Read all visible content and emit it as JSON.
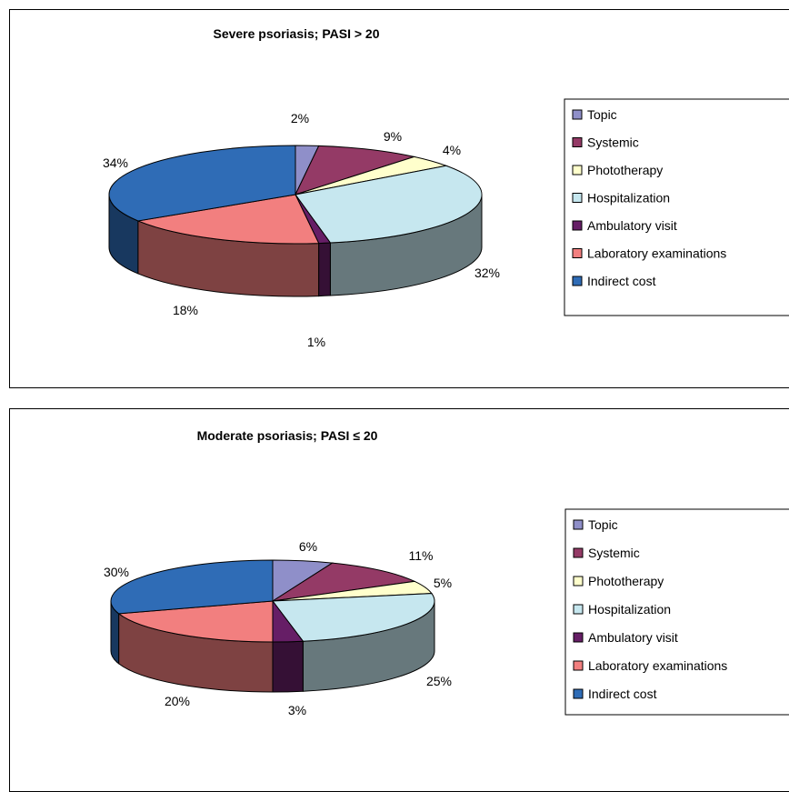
{
  "chart_data": [
    {
      "type": "pie",
      "title": "Severe psoriasis; PASI > 20",
      "categories": [
        "Topic",
        "Systemic",
        "Phototherapy",
        "Hospitalization",
        "Ambulatory visit",
        "Laboratory examinations",
        "Indirect cost"
      ],
      "values": [
        2,
        9,
        4,
        32,
        1,
        18,
        34
      ],
      "labels": [
        "2%",
        "9%",
        "4%",
        "32%",
        "1%",
        "18%",
        "34%"
      ],
      "style": "3d",
      "legend": "right"
    },
    {
      "type": "pie",
      "title": "Moderate psoriasis; PASI ≤ 20",
      "categories": [
        "Topic",
        "Systemic",
        "Phototherapy",
        "Hospitalization",
        "Ambulatory visit",
        "Laboratory examinations",
        "Indirect cost"
      ],
      "values": [
        6,
        11,
        5,
        25,
        3,
        20,
        30
      ],
      "labels": [
        "6%",
        "11%",
        "5%",
        "25%",
        "3%",
        "20%",
        "30%"
      ],
      "style": "3d",
      "legend": "right"
    }
  ],
  "colors": [
    "#8f8fc9",
    "#943a66",
    "#ffffcc",
    "#c6e7ef",
    "#661e66",
    "#f27f7f",
    "#2f6cb6"
  ]
}
